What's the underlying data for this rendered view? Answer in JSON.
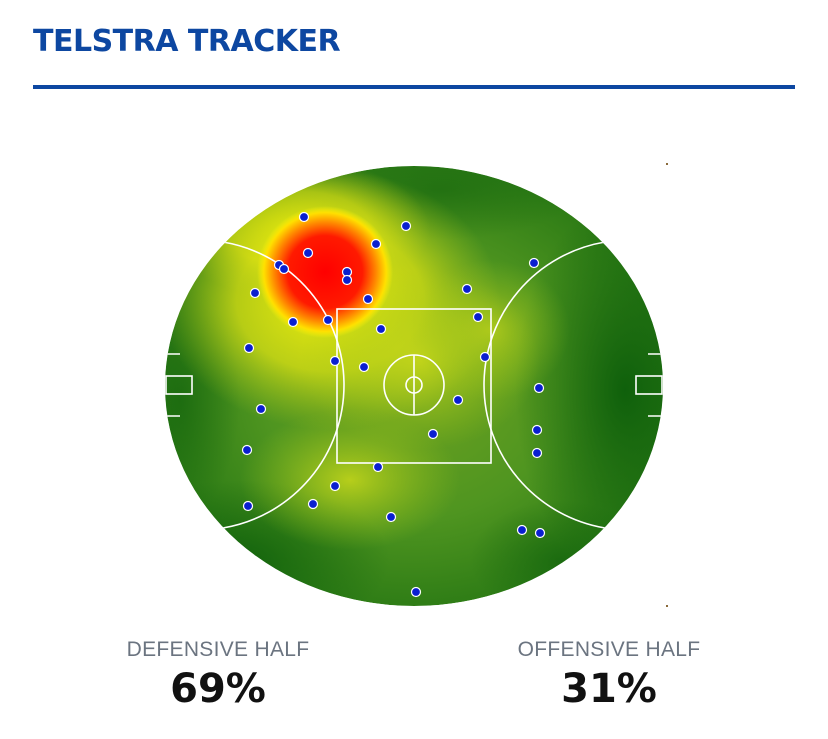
{
  "header": {
    "title": "TELSTRA TRACKER"
  },
  "colors": {
    "brand_blue": "#0d47a1",
    "field_green": "#2e7d1a",
    "heat_yellow": "#f2f20a",
    "heat_red": "#ff0000",
    "marker_blue": "#0a1fd0"
  },
  "stats": [
    {
      "label": "DEFENSIVE HALF",
      "value": "69%"
    },
    {
      "label": "OFFENSIVE HALF",
      "value": "31%"
    }
  ],
  "field": {
    "marker_count": 38
  }
}
